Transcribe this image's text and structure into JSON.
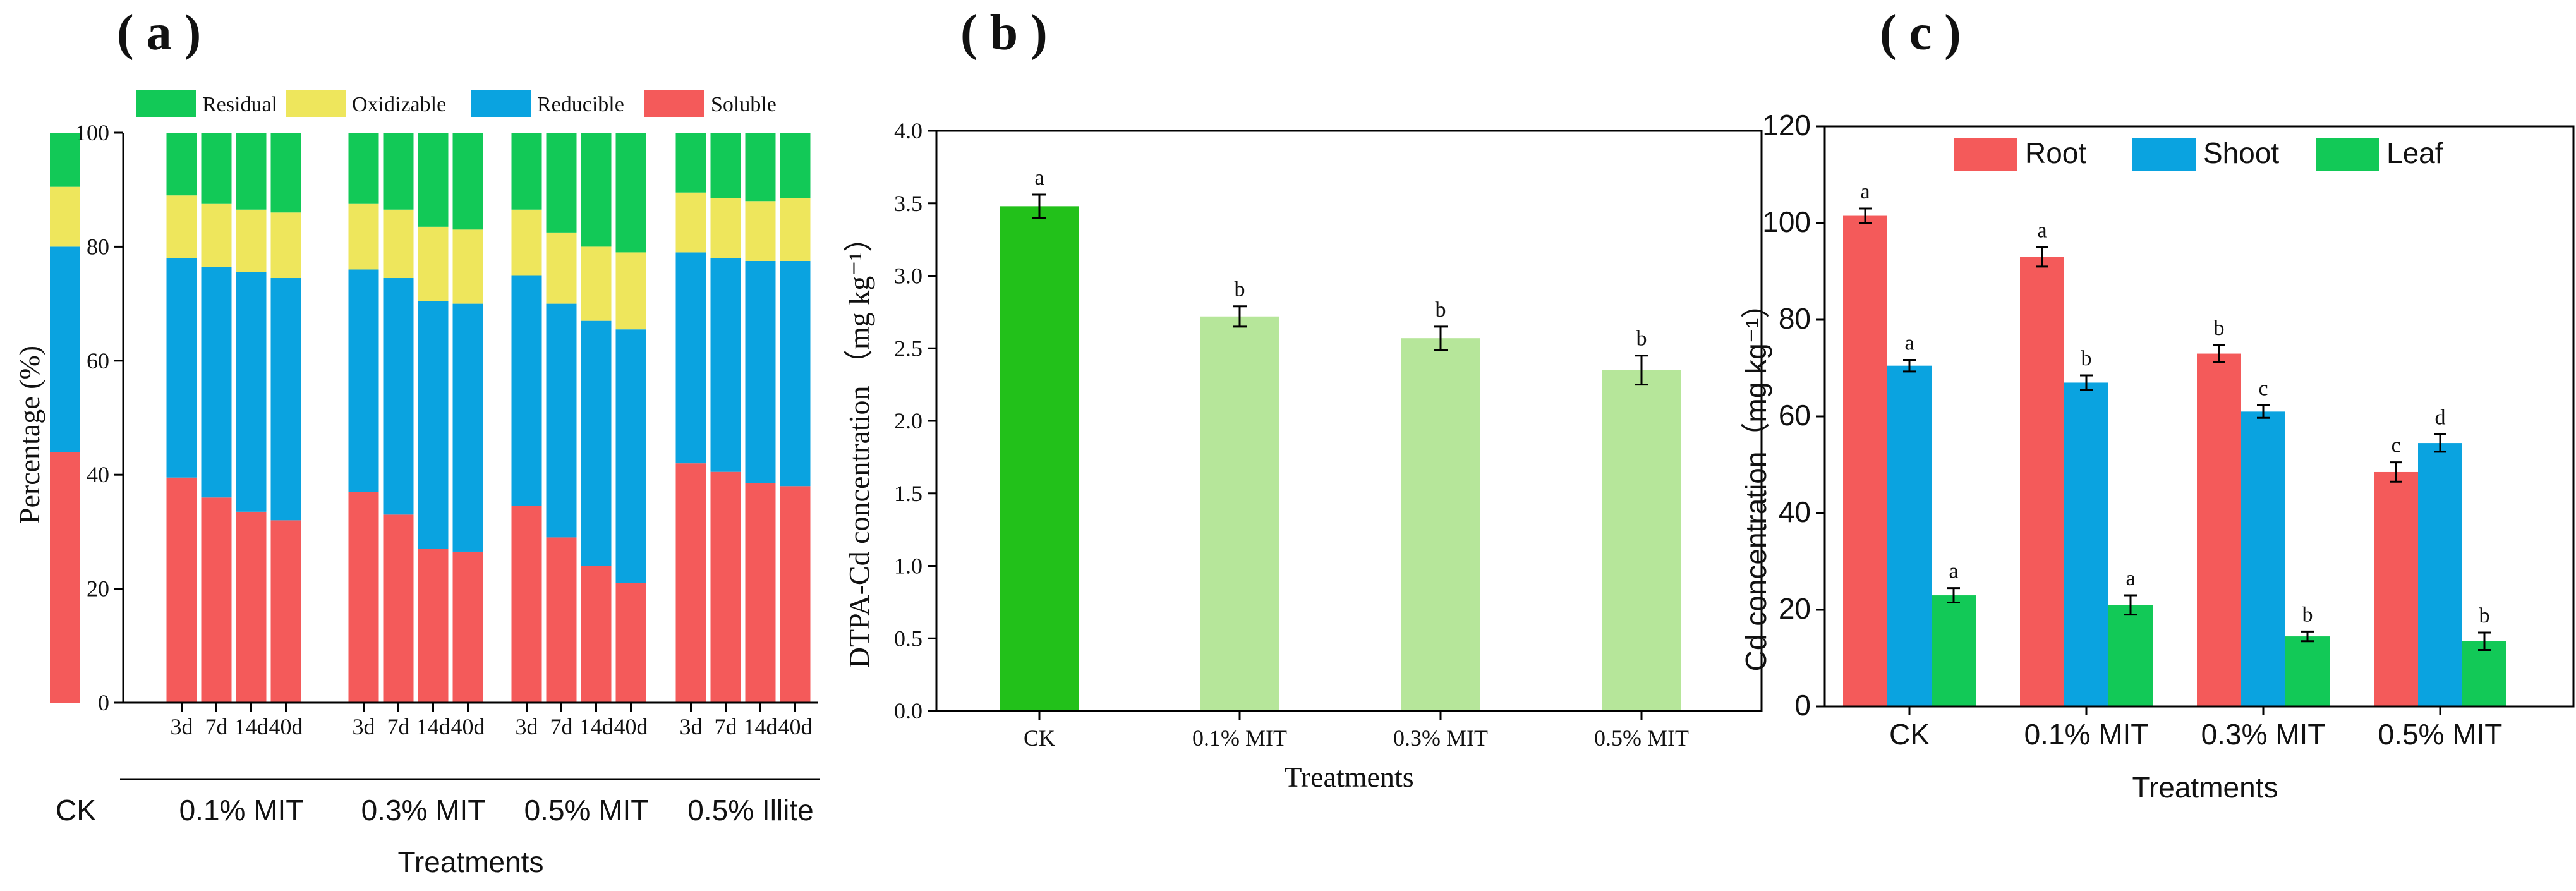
{
  "chart_data": [
    {
      "panel": "( a )",
      "type": "bar",
      "stacked": true,
      "ylabel": "Percentage (%)",
      "xlabel": "Treatments",
      "ylim": [
        0,
        100
      ],
      "yticks": [
        "0",
        "20",
        "40",
        "60",
        "80",
        "100"
      ],
      "legend": [
        "Residual",
        "Oxidizable",
        "Reducible",
        "Soluble"
      ],
      "colors": {
        "Soluble": "#f45a5a",
        "Reducible": "#0aa3e0",
        "Oxidizable": "#eee65c",
        "Residual": "#12c957"
      },
      "groups": [
        {
          "label": "CK",
          "bars": [
            {
              "tick": "",
              "soluble": 44,
              "reducible": 36,
              "oxidizable": 10.5,
              "residual": 9.5
            }
          ]
        },
        {
          "label": "0.1% MIT",
          "bars": [
            {
              "tick": "3d",
              "soluble": 39.5,
              "reducible": 38.5,
              "oxidizable": 11,
              "residual": 11
            },
            {
              "tick": "7d",
              "soluble": 36,
              "reducible": 40.5,
              "oxidizable": 11,
              "residual": 12.5
            },
            {
              "tick": "14d",
              "soluble": 33.5,
              "reducible": 42,
              "oxidizable": 11,
              "residual": 13.5
            },
            {
              "tick": "40d",
              "soluble": 32,
              "reducible": 42.5,
              "oxidizable": 11.5,
              "residual": 14
            }
          ]
        },
        {
          "label": "0.3% MIT",
          "bars": [
            {
              "tick": "3d",
              "soluble": 37,
              "reducible": 39,
              "oxidizable": 11.5,
              "residual": 12.5
            },
            {
              "tick": "7d",
              "soluble": 33,
              "reducible": 41.5,
              "oxidizable": 12,
              "residual": 13.5
            },
            {
              "tick": "14d",
              "soluble": 27,
              "reducible": 43.5,
              "oxidizable": 13,
              "residual": 16.5
            },
            {
              "tick": "40d",
              "soluble": 26.5,
              "reducible": 43.5,
              "oxidizable": 13,
              "residual": 17
            }
          ]
        },
        {
          "label": "0.5% MIT",
          "bars": [
            {
              "tick": "3d",
              "soluble": 34.5,
              "reducible": 40.5,
              "oxidizable": 11.5,
              "residual": 13.5
            },
            {
              "tick": "7d",
              "soluble": 29,
              "reducible": 41,
              "oxidizable": 12.5,
              "residual": 17.5
            },
            {
              "tick": "14d",
              "soluble": 24,
              "reducible": 43,
              "oxidizable": 13,
              "residual": 20
            },
            {
              "tick": "40d",
              "soluble": 21,
              "reducible": 44.5,
              "oxidizable": 13.5,
              "residual": 21
            }
          ]
        },
        {
          "label": "0.5% Illite",
          "bars": [
            {
              "tick": "3d",
              "soluble": 42,
              "reducible": 37,
              "oxidizable": 10.5,
              "residual": 10.5
            },
            {
              "tick": "7d",
              "soluble": 40.5,
              "reducible": 37.5,
              "oxidizable": 10.5,
              "residual": 11.5
            },
            {
              "tick": "14d",
              "soluble": 38.5,
              "reducible": 39,
              "oxidizable": 10.5,
              "residual": 12
            },
            {
              "tick": "40d",
              "soluble": 38,
              "reducible": 39.5,
              "oxidizable": 11,
              "residual": 11.5
            }
          ]
        }
      ]
    },
    {
      "panel": "( b )",
      "type": "bar",
      "ylabel": "DTPA-Cd concentration （mg kg⁻¹）",
      "xlabel": "Treatments",
      "ylim": [
        0,
        4.0
      ],
      "yticks": [
        "0.0",
        "0.5",
        "1.0",
        "1.5",
        "2.0",
        "2.5",
        "3.0",
        "3.5",
        "4.0"
      ],
      "categories": [
        "CK",
        "0.1% MIT",
        "0.3% MIT",
        "0.5% MIT"
      ],
      "values": [
        3.48,
        2.72,
        2.57,
        2.35
      ],
      "errors": [
        0.08,
        0.07,
        0.08,
        0.1
      ],
      "letters": [
        "a",
        "b",
        "b",
        "b"
      ],
      "colors": [
        "#22c11a",
        "#b6e69a",
        "#b6e69a",
        "#b6e69a"
      ]
    },
    {
      "panel": "( c )",
      "type": "bar",
      "ylabel": "Cd concentration（mg kg⁻¹）",
      "xlabel": "Treatments",
      "ylim": [
        0,
        120
      ],
      "yticks": [
        "0",
        "20",
        "40",
        "60",
        "80",
        "100",
        "120"
      ],
      "categories": [
        "CK",
        "0.1% MIT",
        "0.3% MIT",
        "0.5% MIT"
      ],
      "series": [
        {
          "name": "Root",
          "color": "#f45a5a",
          "values": [
            101.5,
            93,
            73,
            48.5
          ],
          "errors": [
            1.5,
            2,
            1.8,
            2
          ],
          "letters": [
            "a",
            "a",
            "b",
            "c"
          ]
        },
        {
          "name": "Shoot",
          "color": "#0aa3e0",
          "values": [
            70.5,
            67,
            61,
            54.5
          ],
          "errors": [
            1.2,
            1.5,
            1.3,
            1.8
          ],
          "letters": [
            "a",
            "b",
            "c",
            "d"
          ]
        },
        {
          "name": "Leaf",
          "color": "#12c957",
          "values": [
            23,
            21,
            14.5,
            13.5
          ],
          "errors": [
            1.5,
            2,
            1,
            1.8
          ],
          "letters": [
            "a",
            "a",
            "b",
            "b"
          ]
        }
      ]
    }
  ]
}
